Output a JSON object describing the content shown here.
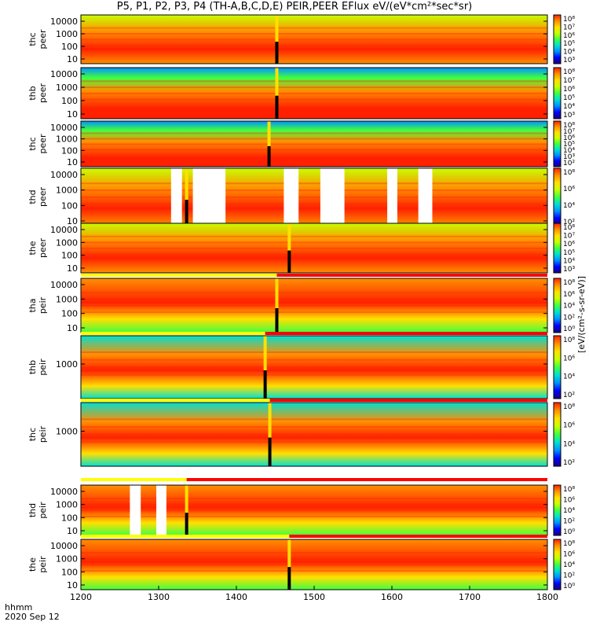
{
  "title": "P5, P1, P2, P3, P4 (TH-A,B,C,D,E) PEIR,PEER EFlux eV/(eV*cm²*sec*sr)",
  "footer": {
    "time_label": "hhmm",
    "date_label": "2020 Sep 12"
  },
  "colorbar_unit": "[eV/(cm²-s-sr-eV)]",
  "colors": {
    "spectrum": [
      "#1a0078",
      "#0000ff",
      "#0090ff",
      "#00e0d0",
      "#40ff40",
      "#c8ff00",
      "#ffe000",
      "#ff9000",
      "#ff2000"
    ],
    "flag_red": "#ff0000",
    "flag_yellow": "#ffff00",
    "data_gap": "#ffffff",
    "fill_black": "#000000"
  },
  "chart_data": {
    "type": "heatmap",
    "x_axis": {
      "range": [
        1200,
        1800
      ],
      "ticks": [
        "1200",
        "1300",
        "1400",
        "1500",
        "1600",
        "1700",
        "1800"
      ]
    },
    "panels": [
      {
        "name": "thc peer",
        "label1": "thc",
        "label2": "peer",
        "yticks": [
          "10",
          "100",
          "1000",
          "10000"
        ],
        "cbar_ticks": [
          "10⁸",
          "10⁷",
          "10⁶",
          "10⁵",
          "10⁴",
          "10³"
        ],
        "scale": "log"
      },
      {
        "name": "thb peer",
        "label1": "thb",
        "label2": "peer",
        "yticks": [
          "10",
          "100",
          "1000",
          "10000"
        ],
        "cbar_ticks": [
          "10⁸",
          "10⁷",
          "10⁶",
          "10⁵",
          "10⁴",
          "10³"
        ],
        "scale": "log"
      },
      {
        "name": "thc peer",
        "label1": "thc",
        "label2": "peer",
        "yticks": [
          "10",
          "100",
          "1000",
          "10000"
        ],
        "cbar_ticks": [
          "10⁸",
          "10⁷",
          "10⁶",
          "10⁵",
          "10⁴",
          "10³",
          "10²"
        ],
        "scale": "log"
      },
      {
        "name": "thd peer",
        "label1": "thd",
        "label2": "peer",
        "yticks": [
          "10",
          "100",
          "1000",
          "10000"
        ],
        "cbar_ticks": [
          "10⁸",
          "10⁶",
          "10⁴",
          "10²"
        ],
        "scale": "log",
        "gaps_minutes": [
          [
            1316,
            1330
          ],
          [
            1344,
            1386
          ],
          [
            1461,
            1480
          ],
          [
            1508,
            1539
          ],
          [
            1594,
            1607
          ],
          [
            1634,
            1652
          ]
        ]
      },
      {
        "name": "the peer",
        "label1": "the",
        "label2": "peer",
        "yticks": [
          "10",
          "100",
          "1000",
          "10000"
        ],
        "cbar_ticks": [
          "10⁸",
          "10⁷",
          "10⁶",
          "10⁵",
          "10⁴",
          "10³"
        ],
        "scale": "log"
      },
      {
        "name": "tha peir",
        "label1": "tha",
        "label2": "peir",
        "yticks": [
          "10",
          "100",
          "1000",
          "10000"
        ],
        "cbar_ticks": [
          "10⁸",
          "10⁶",
          "10⁴",
          "10²",
          "10⁰"
        ],
        "scale": "log"
      },
      {
        "name": "thb peir",
        "label1": "thb",
        "label2": "peir",
        "yticks": [
          "1000"
        ],
        "cbar_ticks": [
          "10⁸",
          "10⁶",
          "10⁴",
          "10²"
        ],
        "scale": "log"
      },
      {
        "name": "thc peir",
        "label1": "thc",
        "label2": "peir",
        "yticks": [
          "1000"
        ],
        "cbar_ticks": [
          "10⁸",
          "10⁶",
          "10⁴",
          "10²"
        ],
        "scale": "log"
      },
      {
        "name": "thd peir",
        "label1": "thd",
        "label2": "peir",
        "yticks": [
          "10",
          "100",
          "1000",
          "10000"
        ],
        "cbar_ticks": [
          "10⁸",
          "10⁶",
          "10⁴",
          "10²",
          "10⁰"
        ],
        "scale": "log",
        "gaps_minutes": [
          [
            1263,
            1277
          ],
          [
            1297,
            1310
          ]
        ]
      },
      {
        "name": "the peir",
        "label1": "the",
        "label2": "peir",
        "yticks": [
          "10",
          "100",
          "1000",
          "10000"
        ],
        "cbar_ticks": [
          "10⁸",
          "10⁶",
          "10⁴",
          "10²",
          "10⁰"
        ],
        "scale": "log"
      }
    ],
    "spikes_minutes": [
      1452,
      1452,
      1442,
      1336,
      1468,
      1452,
      1437,
      1443,
      1336,
      1468
    ]
  }
}
